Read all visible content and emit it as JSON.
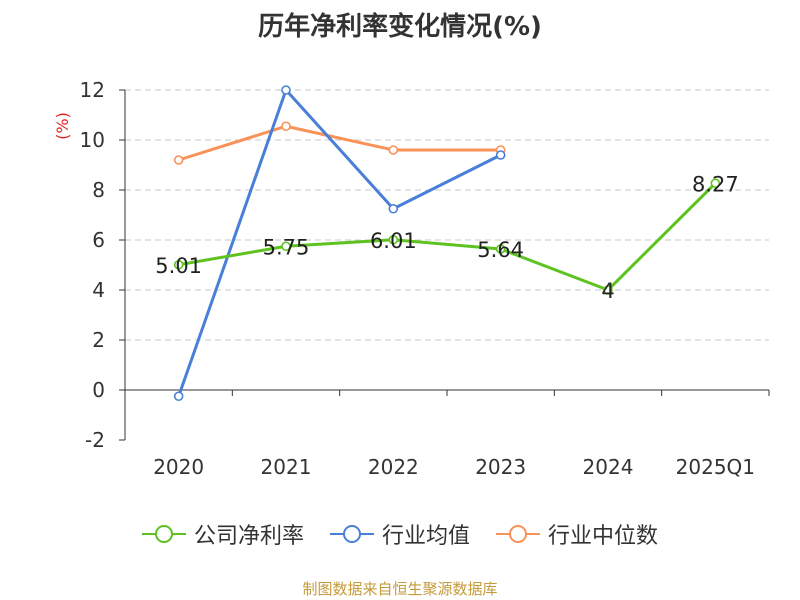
{
  "chart_data": {
    "type": "line",
    "title": "历年净利率变化情况(%)",
    "ylabel": "(%)",
    "categories": [
      "2020",
      "2021",
      "2022",
      "2023",
      "2024",
      "2025Q1"
    ],
    "ylim": [
      -2,
      12
    ],
    "yticks": [
      -2,
      0,
      2,
      4,
      6,
      8,
      10,
      12
    ],
    "grid": true,
    "legend_position": "bottom",
    "series": [
      {
        "name": "公司净利率",
        "color": "#5ec321",
        "values": [
          5.01,
          5.75,
          6.01,
          5.64,
          4,
          8.27
        ],
        "labels": [
          "5.01",
          "5.75",
          "6.01",
          "5.64",
          "4",
          "8.27"
        ]
      },
      {
        "name": "行业均值",
        "color": "#4a7fd8",
        "values": [
          -0.25,
          12.0,
          7.25,
          9.4,
          null,
          null
        ]
      },
      {
        "name": "行业中位数",
        "color": "#f89257",
        "values": [
          9.2,
          10.55,
          9.6,
          9.6,
          null,
          null
        ]
      }
    ]
  },
  "footer": {
    "source": "制图数据来自恒生聚源数据库"
  }
}
